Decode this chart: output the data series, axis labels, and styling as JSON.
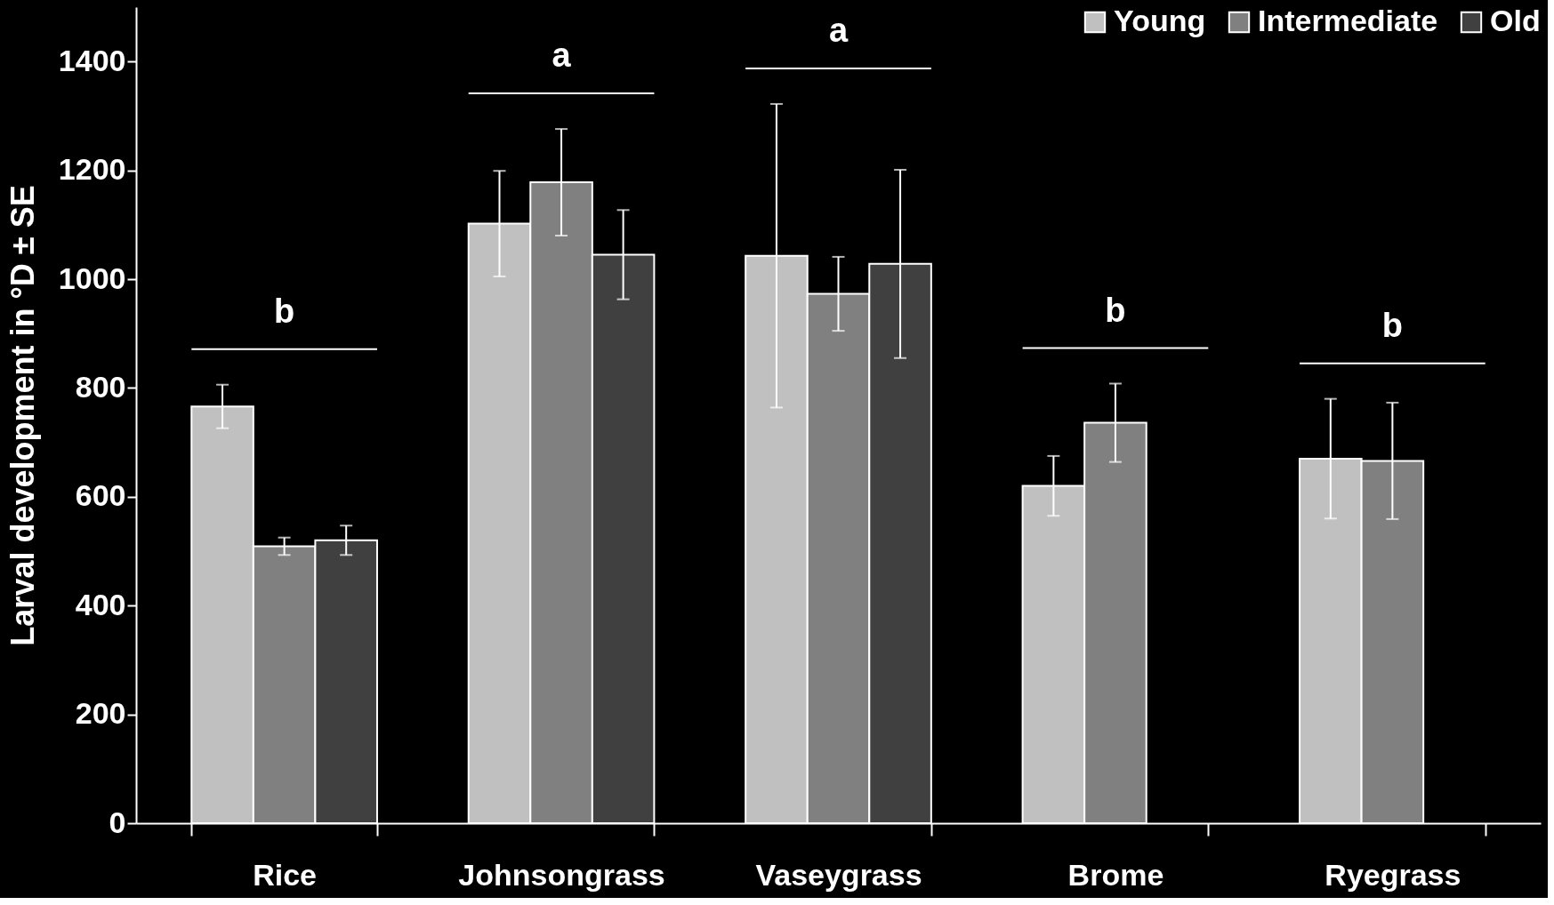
{
  "chart_data": {
    "type": "bar",
    "ylabel": "Larval development in °D ± SE",
    "categories": [
      "Rice",
      "Johnsongrass",
      "Vaseygrass",
      "Brome",
      "Ryegrass"
    ],
    "series": [
      {
        "name": "Young",
        "color": "#c0c0c0",
        "values": [
          766,
          1102,
          1043,
          620,
          670
        ],
        "errors": [
          40,
          97,
          279,
          55,
          110
        ]
      },
      {
        "name": "Intermediate",
        "color": "#808080",
        "values": [
          509,
          1178,
          973,
          736,
          666
        ],
        "errors": [
          16,
          98,
          68,
          72,
          107
        ]
      },
      {
        "name": "Old",
        "color": "#404040",
        "values": [
          520,
          1045,
          1028,
          null,
          null
        ],
        "errors": [
          27,
          82,
          173,
          null,
          null
        ]
      }
    ],
    "ylim": [
      0,
      1500
    ],
    "yticks": [
      0,
      200,
      400,
      600,
      800,
      1000,
      1200,
      1400
    ],
    "grid": false,
    "legend": "top right",
    "annotations": [
      "b",
      "a",
      "a",
      "b",
      "b"
    ]
  }
}
